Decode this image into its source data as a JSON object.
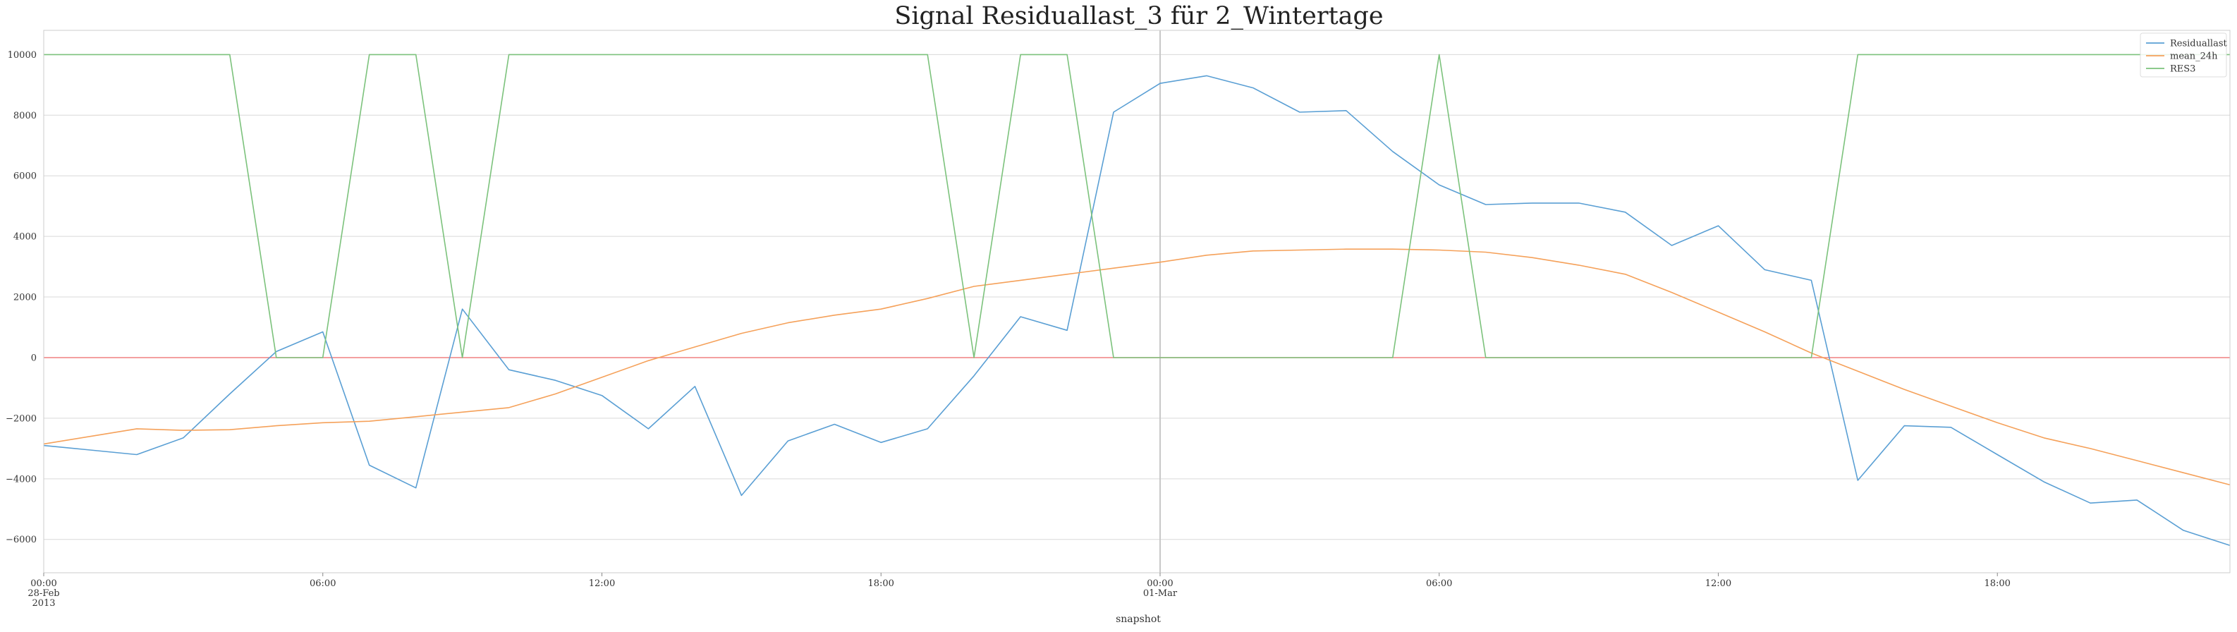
{
  "chart_data": {
    "type": "line",
    "title": "Signal Residuallast_3 für 2_Wintertage",
    "xlabel": "snapshot",
    "ylabel": "",
    "x_hours": [
      0,
      1,
      2,
      3,
      4,
      5,
      6,
      7,
      8,
      9,
      10,
      11,
      12,
      13,
      14,
      15,
      16,
      17,
      18,
      19,
      20,
      21,
      22,
      23,
      24,
      25,
      26,
      27,
      28,
      29,
      30,
      31,
      32,
      33,
      34,
      35,
      36,
      37,
      38,
      39,
      40,
      41,
      42,
      43,
      44,
      45,
      46,
      47
    ],
    "xlim": [
      0,
      47
    ],
    "ylim": [
      -7100,
      10800
    ],
    "yticks": [
      -6000,
      -4000,
      -2000,
      0,
      2000,
      4000,
      6000,
      8000,
      10000
    ],
    "xticks": [
      {
        "hour": 0,
        "lines": [
          "00:00",
          "28-Feb",
          "2013"
        ]
      },
      {
        "hour": 6,
        "lines": [
          "06:00"
        ]
      },
      {
        "hour": 12,
        "lines": [
          "12:00"
        ]
      },
      {
        "hour": 18,
        "lines": [
          "18:00"
        ]
      },
      {
        "hour": 24,
        "lines": [
          "00:00",
          "01-Mar"
        ]
      },
      {
        "hour": 30,
        "lines": [
          "06:00"
        ]
      },
      {
        "hour": 36,
        "lines": [
          "12:00"
        ]
      },
      {
        "hour": 42,
        "lines": [
          "18:00"
        ]
      }
    ],
    "series": [
      {
        "name": "Residuallast",
        "color": "#5a9fd4",
        "values": [
          -2900,
          -3050,
          -3200,
          -2650,
          -1200,
          200,
          850,
          -3550,
          -4300,
          1600,
          -400,
          -750,
          -1250,
          -2350,
          -950,
          -4550,
          -2750,
          -2200,
          -2800,
          -2350,
          -600,
          1350,
          900,
          8100,
          9050,
          9300,
          8900,
          8100,
          8150,
          6800,
          5700,
          5050,
          5100,
          5100,
          4800,
          3700,
          4350,
          2900,
          2550,
          -4050,
          -2250,
          -2300,
          -3200,
          -4100,
          -4800,
          -4700,
          -5700,
          -6200
        ]
      },
      {
        "name": "mean_24h",
        "color": "#f5a15a",
        "values": [
          -2850,
          -2600,
          -2350,
          -2400,
          -2380,
          -2250,
          -2150,
          -2100,
          -1950,
          -1800,
          -1650,
          -1200,
          -650,
          -100,
          350,
          800,
          1150,
          1400,
          1600,
          1950,
          2350,
          2550,
          2750,
          2950,
          3150,
          3380,
          3520,
          3550,
          3580,
          3580,
          3550,
          3480,
          3300,
          3050,
          2750,
          2150,
          1500,
          850,
          150,
          -450,
          -1050,
          -1600,
          -2150,
          -2650,
          -3000,
          -3400,
          -3800,
          -4200
        ]
      },
      {
        "name": "RES3",
        "color": "#7cc27c",
        "values": [
          10000,
          10000,
          10000,
          10000,
          10000,
          0,
          0,
          10000,
          10000,
          0,
          10000,
          10000,
          10000,
          10000,
          10000,
          10000,
          10000,
          10000,
          10000,
          10000,
          0,
          10000,
          10000,
          0,
          0,
          0,
          0,
          0,
          0,
          0,
          10000,
          0,
          0,
          0,
          0,
          0,
          0,
          0,
          0,
          10000,
          10000,
          10000,
          10000,
          10000,
          10000,
          10000,
          10000,
          10000
        ]
      }
    ],
    "reference_lines": {
      "hline_y": 0,
      "hline_color": "#f08080",
      "vline_hour": 24,
      "vline_color": "#c8c8c8"
    },
    "grid": true,
    "legend_position": "top-right"
  }
}
